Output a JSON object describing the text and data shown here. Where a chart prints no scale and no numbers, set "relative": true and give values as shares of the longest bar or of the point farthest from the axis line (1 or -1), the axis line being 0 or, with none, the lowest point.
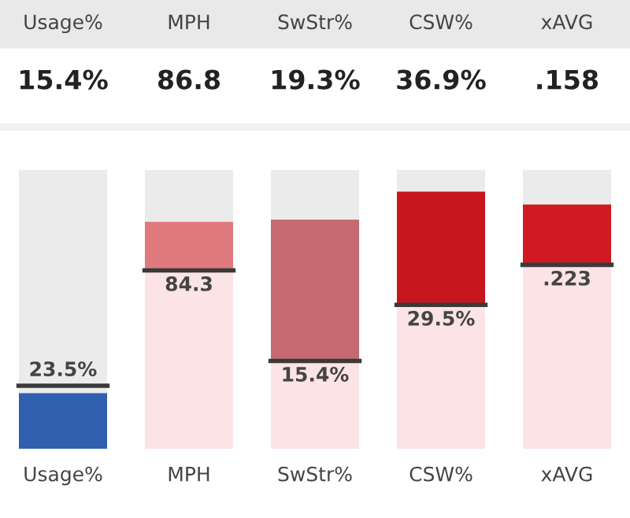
{
  "chart_data": [
    {
      "type": "other",
      "annotations": [
        "Usage%",
        "MPH",
        "SwStr%",
        "CSW%",
        "xAVG",
        "15.4%",
        "86.8",
        "19.3%",
        "36.9%",
        ".158"
      ]
    },
    {
      "type": "bar",
      "relative": true,
      "stacked": true,
      "tick_labels": "x",
      "categories": [
        "Usage%",
        "MPH",
        "SwStr%",
        "CSW%",
        "xAVG"
      ],
      "series": [
        {
          "colors": [
            "#2f5fae",
            "#fbe3e6",
            "#fbe3e6",
            "#fbe3e6",
            "#fbe3e6"
          ],
          "values": [
            0.2,
            0.64,
            0.315,
            0.516,
            0.66
          ]
        },
        {
          "colors": [
            "#2f5fae",
            "#e07a7e",
            "#c46a70",
            "#c8161e",
            "#d01a22"
          ],
          "values": [
            0,
            0.175,
            0.508,
            0.407,
            0.217
          ]
        },
        {
          "color": "#ebebeb",
          "values": [
            0.8,
            0.185,
            0.177,
            0.077,
            0.123
          ]
        }
      ],
      "annotations": [
        {
          "text": "23.5%",
          "x": "Usage%",
          "y": 0.226
        },
        {
          "text": "84.3",
          "x": "MPH",
          "y": 0.64
        },
        {
          "text": "15.4%",
          "x": "SwStr%",
          "y": 0.315
        },
        {
          "text": "29.5%",
          "x": "CSW%",
          "y": 0.516
        },
        {
          "text": ".223",
          "x": "xAVG",
          "y": 0.66
        }
      ]
    }
  ]
}
